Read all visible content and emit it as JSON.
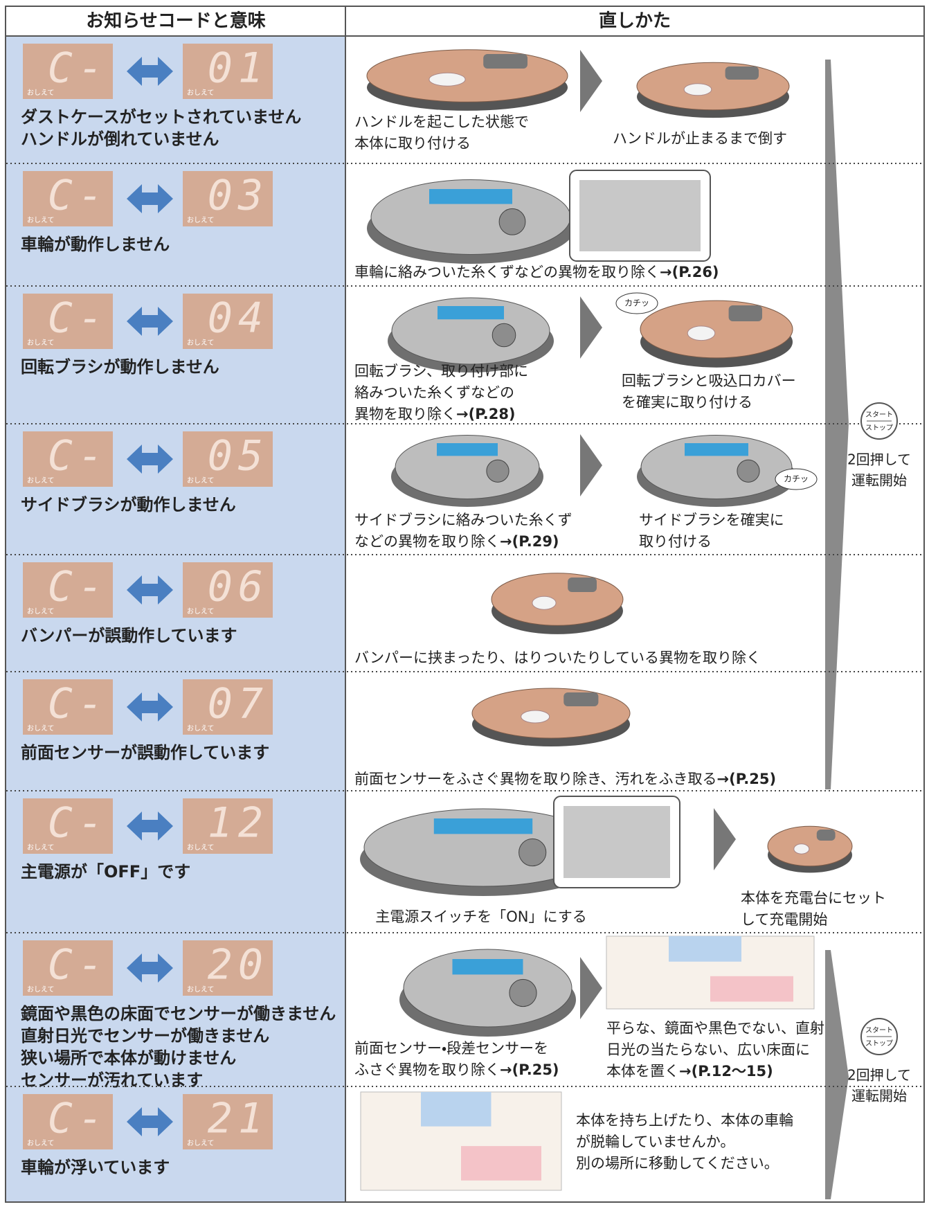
{
  "header": {
    "left": "お知らせコードと意味",
    "right": "直しかた"
  },
  "indicator_label": "おしえて",
  "rows": [
    {
      "code": [
        "C-",
        "01"
      ],
      "meaning": [
        "ダストケースがセットされていません",
        "ハンドルが倒れていません"
      ],
      "steps": [
        {
          "lines": [
            "ハンドルを起こした状態で",
            "本体に取り付ける"
          ]
        },
        {
          "lines": [
            "ハンドルが止まるまで倒す"
          ]
        }
      ]
    },
    {
      "code": [
        "C-",
        "03"
      ],
      "meaning": [
        "車輪が動作しません"
      ],
      "steps": [
        {
          "lines": [
            "車輪に絡みついた糸くずなどの異物を取り除く"
          ],
          "ref": "→(P.26)"
        }
      ]
    },
    {
      "code": [
        "C-",
        "04"
      ],
      "meaning": [
        "回転ブラシが動作しません"
      ],
      "steps": [
        {
          "lines": [
            "回転ブラシ、取り付け部に",
            "絡みついた糸くずなどの",
            "異物を取り除く"
          ],
          "ref": "→(P.28)"
        },
        {
          "lines": [
            "回転ブラシと吸込口カバー",
            "を確実に取り付ける"
          ],
          "callout": "カチッ"
        }
      ]
    },
    {
      "code": [
        "C-",
        "05"
      ],
      "meaning": [
        "サイドブラシが動作しません"
      ],
      "steps": [
        {
          "lines": [
            "サイドブラシに絡みついた糸くず",
            "などの異物を取り除く"
          ],
          "ref": "→(P.29)"
        },
        {
          "lines": [
            "サイドブラシを確実に",
            "取り付ける"
          ],
          "callout": "カチッ"
        }
      ]
    },
    {
      "code": [
        "C-",
        "06"
      ],
      "meaning": [
        "バンパーが誤動作しています"
      ],
      "steps": [
        {
          "lines": [
            "バンパーに挟まったり、はりついたりしている異物を取り除く"
          ]
        }
      ]
    },
    {
      "code": [
        "C-",
        "07"
      ],
      "meaning": [
        "前面センサーが誤動作しています"
      ],
      "steps": [
        {
          "lines": [
            "前面センサーをふさぐ異物を取り除き、汚れをふき取る"
          ],
          "ref": "→(P.25)"
        }
      ]
    },
    {
      "code": [
        "C-",
        "12"
      ],
      "meaning": [
        "主電源が「OFF」です"
      ],
      "steps": [
        {
          "lines": [
            "主電源スイッチを「ON」にする"
          ]
        },
        {
          "lines": [
            "本体を充電台にセット",
            "して充電開始"
          ]
        }
      ]
    },
    {
      "code": [
        "C-",
        "20"
      ],
      "meaning": [
        "鏡面や黒色の床面でセンサーが働きません",
        "直射日光でセンサーが働きません",
        "狭い場所で本体が動けません",
        "センサーが汚れています"
      ],
      "steps": [
        {
          "lines": [
            "前面センサー・段差センサーを",
            "ふさぐ異物を取り除く"
          ],
          "ref": "→(P.25)"
        },
        {
          "lines": [
            "平らな、鏡面や黒色でない、直射",
            "日光の当たらない、広い床面に",
            "本体を置く"
          ],
          "ref": "→(P.12〜15)"
        }
      ]
    },
    {
      "code": [
        "C-",
        "21"
      ],
      "meaning": [
        "車輪が浮いています"
      ],
      "steps": [
        {
          "lines": [
            "本体を持ち上げたり、本体の車輪",
            "が脱輪していませんか。",
            "別の場所に移動してください。"
          ]
        }
      ]
    }
  ],
  "restart": [
    {
      "button": [
        "スタート",
        "ストップ"
      ],
      "lines": [
        "2回押して",
        "運転開始"
      ]
    },
    {
      "button": [
        "スタート",
        "ストップ"
      ],
      "lines": [
        "2回押して",
        "運転開始"
      ]
    }
  ]
}
